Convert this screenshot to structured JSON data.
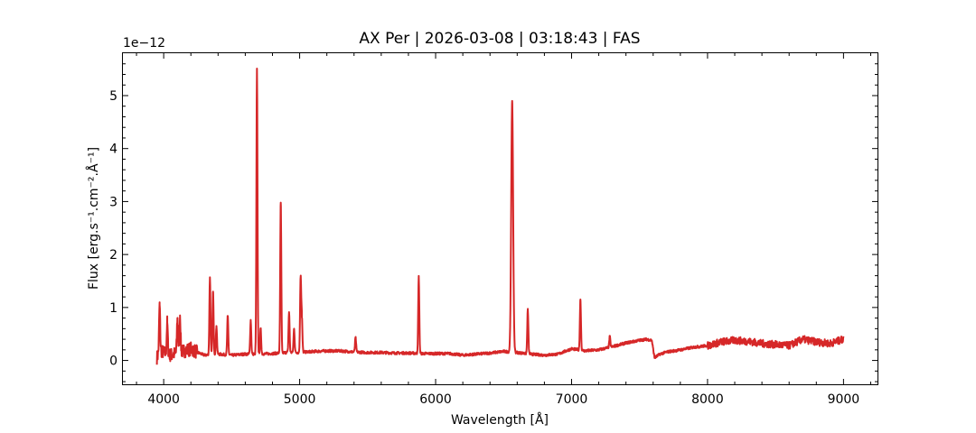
{
  "chart_data": {
    "type": "line",
    "title": "AX Per | 2026-03-08 | 03:18:43 | FAS",
    "xlabel": "Wavelength [Å]",
    "ylabel": "Flux [erg.s⁻¹.cm⁻².Å⁻¹]",
    "y_offset_label": "1e−12",
    "y_scale_factor": 1e-12,
    "xlim": [
      3700,
      9250
    ],
    "ylim": [
      -0.45,
      5.8
    ],
    "x_ticks": [
      4000,
      5000,
      6000,
      7000,
      8000,
      9000
    ],
    "x_tick_labels": [
      "4000",
      "5000",
      "6000",
      "7000",
      "8000",
      "9000"
    ],
    "y_ticks": [
      0,
      1,
      2,
      3,
      4,
      5
    ],
    "y_tick_labels": [
      "0",
      "1",
      "2",
      "3",
      "4",
      "5"
    ],
    "grid": false,
    "line_color": "#d62728",
    "series": [
      {
        "x": [
          3950,
          3970,
          4000,
          4050,
          4100,
          4150,
          4200,
          4250,
          4300,
          4400,
          4500,
          4600,
          4700,
          4800,
          4900,
          5000,
          5100,
          5200,
          5300,
          5400,
          5500,
          5600,
          5700,
          5800,
          5900,
          6000,
          6100,
          6200,
          6300,
          6400,
          6500,
          6600,
          6700,
          6800,
          6900,
          7000,
          7100,
          7200,
          7300,
          7400,
          7500,
          7550,
          7590,
          7610,
          7650,
          7700,
          7800,
          7900,
          8000,
          8100,
          8200,
          8300,
          8400,
          8500,
          8600,
          8700,
          8800,
          8900,
          9000
        ],
        "y": [
          0.05,
          0.2,
          0.15,
          0.1,
          0.15,
          0.18,
          0.22,
          0.15,
          0.1,
          0.12,
          0.1,
          0.12,
          0.12,
          0.13,
          0.15,
          0.15,
          0.17,
          0.18,
          0.18,
          0.16,
          0.15,
          0.15,
          0.14,
          0.14,
          0.13,
          0.13,
          0.13,
          0.1,
          0.12,
          0.14,
          0.17,
          0.15,
          0.12,
          0.1,
          0.12,
          0.22,
          0.18,
          0.2,
          0.26,
          0.33,
          0.38,
          0.4,
          0.38,
          0.05,
          0.12,
          0.16,
          0.2,
          0.25,
          0.28,
          0.35,
          0.38,
          0.36,
          0.32,
          0.3,
          0.28,
          0.4,
          0.35,
          0.32,
          0.4
        ]
      }
    ],
    "emission_lines": [
      {
        "x": 3970,
        "peak": 1.05
      },
      {
        "x": 4026,
        "peak": 0.72
      },
      {
        "x": 4101,
        "peak": 0.8
      },
      {
        "x": 4120,
        "peak": 0.85
      },
      {
        "x": 4340,
        "peak": 1.57
      },
      {
        "x": 4363,
        "peak": 1.3
      },
      {
        "x": 4388,
        "peak": 0.65
      },
      {
        "x": 4471,
        "peak": 0.84
      },
      {
        "x": 4640,
        "peak": 0.76
      },
      {
        "x": 4686,
        "peak": 5.5
      },
      {
        "x": 4713,
        "peak": 0.6
      },
      {
        "x": 4861,
        "peak": 2.98
      },
      {
        "x": 4922,
        "peak": 0.91
      },
      {
        "x": 4959,
        "peak": 0.6
      },
      {
        "x": 5007,
        "peak": 1.57
      },
      {
        "x": 5016,
        "peak": 0.82
      },
      {
        "x": 5411,
        "peak": 0.43
      },
      {
        "x": 5876,
        "peak": 1.58
      },
      {
        "x": 6563,
        "peak": 4.9
      },
      {
        "x": 6678,
        "peak": 0.96
      },
      {
        "x": 7065,
        "peak": 1.15
      },
      {
        "x": 7281,
        "peak": 0.45
      }
    ]
  }
}
